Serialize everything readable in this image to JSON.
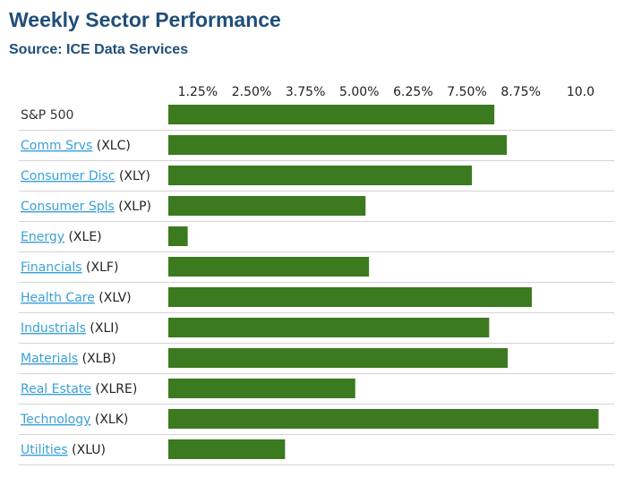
{
  "header": {
    "title": "Weekly Sector Performance",
    "subtitle": "Source: ICE Data Services"
  },
  "colors": {
    "bar": "#3b7a1f",
    "link": "#3aa0d8",
    "title": "#1f4e79",
    "rule": "#d4d4d4"
  },
  "chart_data": {
    "type": "bar",
    "orientation": "horizontal",
    "title": "Weekly Sector Performance",
    "subtitle": "Source: ICE Data Services",
    "xlim": [
      0,
      10
    ],
    "tick_labels": [
      "1.25%",
      "2.50%",
      "3.75%",
      "5.00%",
      "6.25%",
      "7.50%",
      "8.75%",
      "10.0"
    ],
    "tick_values": [
      1.25,
      2.5,
      3.75,
      5.0,
      6.25,
      7.5,
      8.75,
      10.0
    ],
    "categories": [
      {
        "name": "S&P 500",
        "code": "",
        "link": false
      },
      {
        "name": "Comm Srvs",
        "code": "(XLC)",
        "link": true
      },
      {
        "name": "Consumer Disc",
        "code": "(XLY)",
        "link": true
      },
      {
        "name": "Consumer Spls",
        "code": "(XLP)",
        "link": true
      },
      {
        "name": "Energy",
        "code": "(XLE)",
        "link": true
      },
      {
        "name": "Financials",
        "code": "(XLF)",
        "link": true
      },
      {
        "name": "Health Care",
        "code": "(XLV)",
        "link": true
      },
      {
        "name": "Industrials",
        "code": "(XLI)",
        "link": true
      },
      {
        "name": "Materials",
        "code": "(XLB)",
        "link": true
      },
      {
        "name": "Real Estate",
        "code": "(XLRE)",
        "link": true
      },
      {
        "name": "Technology",
        "code": "(XLK)",
        "link": true
      },
      {
        "name": "Utilities",
        "code": "(XLU)",
        "link": true
      }
    ],
    "values": [
      7.57,
      7.86,
      7.05,
      4.58,
      0.45,
      4.66,
      8.44,
      7.45,
      7.88,
      4.34,
      9.99,
      2.71
    ],
    "grid": false,
    "legend": "none"
  }
}
